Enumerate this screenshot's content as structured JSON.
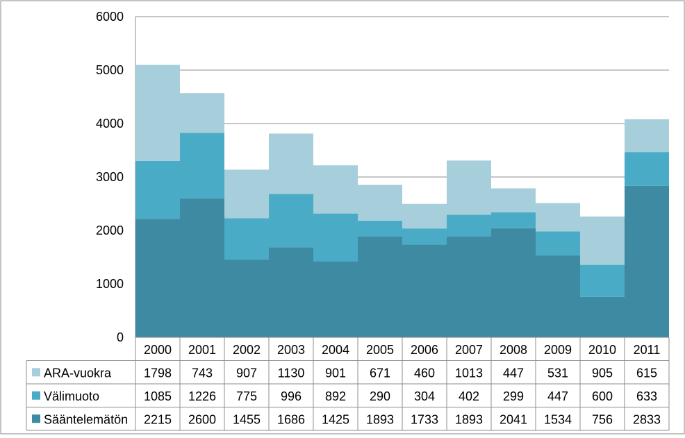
{
  "chart_data": {
    "type": "bar",
    "stacked": true,
    "title": "",
    "xlabel": "",
    "ylabel": "",
    "ylim": [
      0,
      6000
    ],
    "yticks": [
      0,
      1000,
      2000,
      3000,
      4000,
      5000,
      6000
    ],
    "grid": true,
    "legend": "data-table-left",
    "categories": [
      "2000",
      "2001",
      "2002",
      "2003",
      "2004",
      "2005",
      "2006",
      "2007",
      "2008",
      "2009",
      "2010",
      "2011"
    ],
    "series": [
      {
        "name": "Sääntelemätön",
        "color": "#3d8aa2",
        "values": [
          2215,
          2600,
          1455,
          1686,
          1425,
          1893,
          1733,
          1893,
          2041,
          1534,
          756,
          2833
        ]
      },
      {
        "name": "Välimuoto",
        "color": "#4aabc6",
        "values": [
          1085,
          1226,
          775,
          996,
          892,
          290,
          304,
          402,
          299,
          447,
          600,
          633
        ]
      },
      {
        "name": "ARA-vuokra",
        "color": "#a7cedb",
        "values": [
          1798,
          743,
          907,
          1130,
          901,
          671,
          460,
          1013,
          447,
          531,
          905,
          615
        ]
      }
    ],
    "table_row_order": [
      "ARA-vuokra",
      "Välimuoto",
      "Sääntelemätön"
    ]
  }
}
